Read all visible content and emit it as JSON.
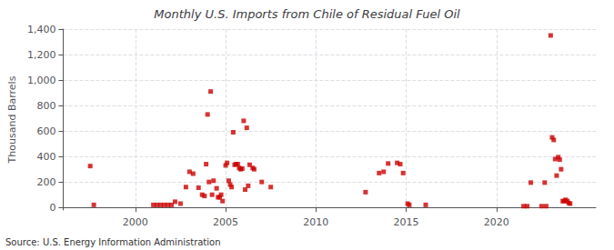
{
  "chart_data": {
    "type": "scatter",
    "title": "Monthly U.S. Imports from Chile of Residual Fuel Oil",
    "ylabel": "Thousand Barrels",
    "annotation": "Source: U.S. Energy Information Administration",
    "color": "#cc0000",
    "marker": "square",
    "grid": true,
    "xlim": [
      1996.0,
      2025.5
    ],
    "xticks": [
      2000,
      2005,
      2010,
      2015,
      2020
    ],
    "ylim": [
      -20,
      1400
    ],
    "yticks": [
      0,
      200,
      400,
      600,
      800,
      {
        "value": 1000,
        "label": "1,000"
      },
      {
        "value": 1200,
        "label": "1,200"
      },
      {
        "value": 1400,
        "label": "1,400"
      }
    ],
    "x": [
      1997.5,
      1997.7,
      2001.0,
      2001.2,
      2001.4,
      2001.6,
      2001.8,
      2002.0,
      2002.2,
      2002.5,
      2002.8,
      2003.0,
      2003.2,
      2003.5,
      2003.7,
      2003.83,
      2003.92,
      2004.0,
      2004.08,
      2004.17,
      2004.25,
      2004.33,
      2004.5,
      2004.58,
      2004.67,
      2004.75,
      2004.83,
      2005.0,
      2005.08,
      2005.17,
      2005.25,
      2005.33,
      2005.42,
      2005.5,
      2005.58,
      2005.67,
      2005.75,
      2005.83,
      2005.92,
      2006.0,
      2006.08,
      2006.17,
      2006.25,
      2006.33,
      2006.5,
      2006.58,
      2007.0,
      2007.5,
      2012.75,
      2013.5,
      2013.75,
      2014.0,
      2014.5,
      2014.67,
      2014.83,
      2015.08,
      2015.17,
      2016.08,
      2021.5,
      2021.7,
      2021.9,
      2022.5,
      2022.67,
      2022.75,
      2023.0,
      2023.08,
      2023.17,
      2023.25,
      2023.33,
      2023.42,
      2023.5,
      2023.58,
      2023.67,
      2023.75,
      2023.83,
      2023.92,
      2024.0,
      2024.08
    ],
    "values": [
      325,
      20,
      20,
      20,
      20,
      20,
      20,
      20,
      45,
      30,
      160,
      280,
      265,
      155,
      100,
      90,
      340,
      730,
      200,
      910,
      100,
      210,
      150,
      80,
      80,
      100,
      50,
      330,
      350,
      210,
      180,
      160,
      590,
      335,
      340,
      340,
      310,
      300,
      305,
      680,
      140,
      625,
      170,
      335,
      310,
      300,
      200,
      160,
      120,
      270,
      280,
      345,
      350,
      340,
      270,
      30,
      20,
      20,
      10,
      10,
      195,
      10,
      195,
      10,
      1350,
      550,
      530,
      380,
      250,
      395,
      375,
      300,
      50,
      50,
      60,
      50,
      35,
      30
    ]
  }
}
